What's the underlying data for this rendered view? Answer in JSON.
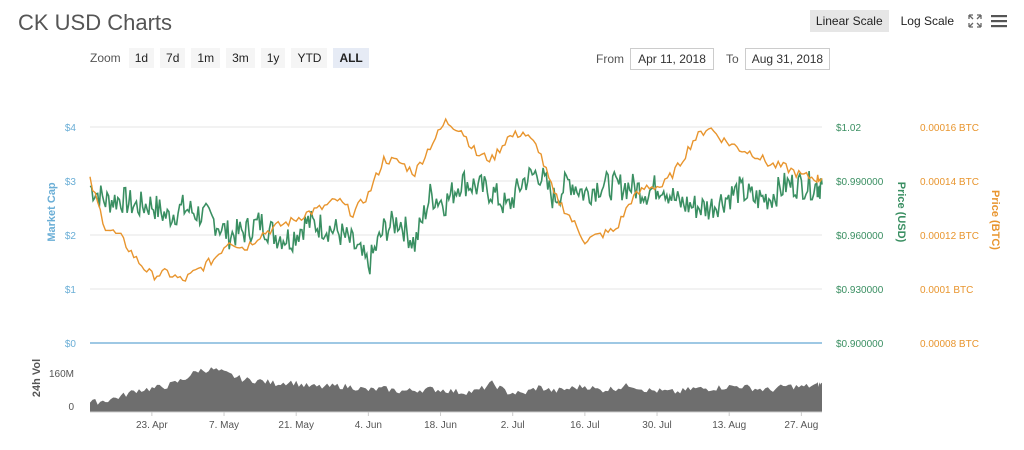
{
  "title": "CK USD Charts",
  "scale": {
    "linear": "Linear Scale",
    "log": "Log Scale"
  },
  "icons": {
    "fullscreen": "fullscreen-icon",
    "menu": "hamburger-menu-icon"
  },
  "zoom": {
    "label": "Zoom",
    "options": [
      "1d",
      "7d",
      "1m",
      "3m",
      "1y",
      "YTD",
      "ALL"
    ],
    "selected": "ALL"
  },
  "range": {
    "from_label": "From",
    "from": "Apr 11, 2018",
    "to_label": "To",
    "to": "Aug 31, 2018"
  },
  "colors": {
    "marketcap": "#6aaed6",
    "usd": "#3a8f62",
    "btc": "#e8952e",
    "volume": "#6e6e6e"
  },
  "chart_data": {
    "type": "line",
    "x_start": "Apr 11, 2018",
    "x_end": "Aug 31, 2018",
    "x_ticks": [
      "23. Apr",
      "7. May",
      "21. May",
      "4. Jun",
      "18. Jun",
      "2. Jul",
      "16. Jul",
      "30. Jul",
      "13. Aug",
      "27. Aug"
    ],
    "left_axis": {
      "label": "Market Cap",
      "ticks": [
        "$4",
        "$3",
        "$2",
        "$1",
        "$0"
      ]
    },
    "usd_axis": {
      "label": "Price (USD)",
      "ticks": [
        "$1.02",
        "$0.990000",
        "$0.960000",
        "$0.930000",
        "$0.900000"
      ],
      "ylim": [
        0.9,
        1.02
      ]
    },
    "btc_axis": {
      "label": "Price (BTC)",
      "ticks": [
        "0.00016 BTC",
        "0.00014 BTC",
        "0.00012 BTC",
        "0.0001 BTC",
        "0.00008 BTC"
      ],
      "ylim": [
        8e-05,
        0.00016
      ]
    },
    "volume_axis": {
      "label": "24h Vol",
      "ticks": [
        "160M",
        "0"
      ]
    },
    "series": [
      {
        "name": "Price (USD)",
        "x_days": [
          0,
          3,
          6,
          9,
          12,
          15,
          18,
          21,
          24,
          27,
          30,
          33,
          36,
          39,
          42,
          45,
          48,
          51,
          54,
          57,
          60,
          63,
          66,
          69,
          72,
          75,
          78,
          81,
          84,
          87,
          90,
          93,
          96,
          99,
          102,
          105,
          108,
          111,
          114,
          117,
          120,
          123,
          126,
          129,
          132,
          135,
          138,
          141,
          142
        ],
        "values": [
          0.987,
          0.979,
          0.98,
          0.976,
          0.977,
          0.97,
          0.975,
          0.972,
          0.968,
          0.96,
          0.962,
          0.967,
          0.96,
          0.958,
          0.967,
          0.965,
          0.962,
          0.955,
          0.943,
          0.963,
          0.968,
          0.955,
          0.982,
          0.978,
          0.99,
          0.987,
          0.984,
          0.975,
          0.99,
          0.995,
          0.98,
          0.99,
          0.983,
          0.988,
          0.987,
          0.987,
          0.984,
          0.988,
          0.978,
          0.976,
          0.975,
          0.98,
          0.985,
          0.98,
          0.981,
          0.988,
          0.988,
          0.987,
          0.988
        ]
      },
      {
        "name": "Price (BTC)",
        "x_days": [
          0,
          3,
          6,
          9,
          12,
          15,
          18,
          21,
          24,
          27,
          30,
          33,
          36,
          39,
          42,
          45,
          48,
          51,
          54,
          57,
          60,
          63,
          66,
          69,
          72,
          75,
          78,
          81,
          84,
          87,
          90,
          93,
          96,
          99,
          102,
          105,
          108,
          111,
          114,
          117,
          120,
          123,
          126,
          129,
          132,
          135,
          138,
          141,
          142
        ],
        "values": [
          0.00014,
          0.000123,
          0.000119,
          0.000111,
          0.000105,
          0.000106,
          0.000103,
          0.000107,
          0.000111,
          0.000118,
          0.000115,
          0.00012,
          0.000123,
          0.000125,
          0.000128,
          0.00013,
          0.000133,
          0.000128,
          0.000135,
          0.000148,
          0.000147,
          0.000143,
          0.000153,
          0.000162,
          0.000159,
          0.00015,
          0.000148,
          0.000156,
          0.000158,
          0.000152,
          0.000135,
          0.000127,
          0.000118,
          0.00012,
          0.000122,
          0.000133,
          0.000138,
          0.000138,
          0.000145,
          0.000155,
          0.00016,
          0.000155,
          0.000152,
          0.00015,
          0.000146,
          0.000145,
          0.000142,
          0.000141,
          0.000141
        ]
      },
      {
        "name": "24h Vol",
        "x_days": [
          0,
          3,
          6,
          9,
          12,
          15,
          18,
          21,
          24,
          27,
          30,
          33,
          36,
          39,
          42,
          45,
          48,
          51,
          54,
          57,
          60,
          63,
          66,
          69,
          72,
          75,
          78,
          81,
          84,
          87,
          90,
          93,
          96,
          99,
          102,
          105,
          108,
          111,
          114,
          117,
          120,
          123,
          126,
          129,
          132,
          135,
          138,
          141,
          142
        ],
        "values": [
          0.18,
          0.22,
          0.3,
          0.42,
          0.45,
          0.5,
          0.62,
          0.8,
          0.82,
          0.72,
          0.62,
          0.6,
          0.55,
          0.58,
          0.5,
          0.48,
          0.5,
          0.48,
          0.42,
          0.45,
          0.4,
          0.42,
          0.44,
          0.42,
          0.38,
          0.4,
          0.55,
          0.38,
          0.35,
          0.48,
          0.4,
          0.45,
          0.5,
          0.42,
          0.46,
          0.52,
          0.42,
          0.4,
          0.38,
          0.45,
          0.45,
          0.48,
          0.5,
          0.45,
          0.42,
          0.5,
          0.48,
          0.52,
          0.55
        ]
      }
    ]
  }
}
